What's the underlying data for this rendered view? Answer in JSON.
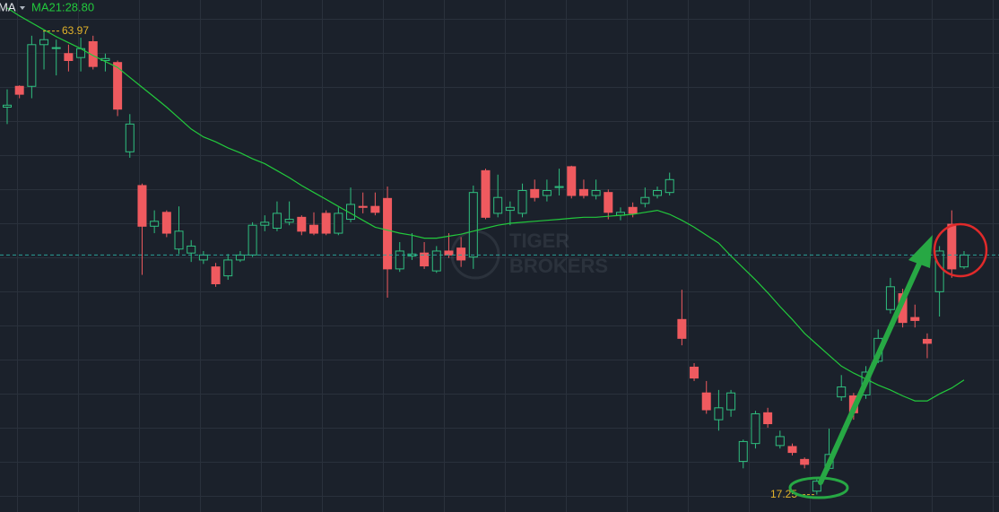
{
  "chart_data": {
    "type": "candlestick",
    "indicator": "MA",
    "ylim": [
      15.5,
      67.1
    ],
    "up_color": "#2fbf7f",
    "down_color": "#ef5a5f",
    "label_color": "#e3b32a",
    "last_price_line": true,
    "watermark": [
      "TIGER",
      "BROKERS"
    ],
    "high_label": 63.97,
    "low_label": 17.25,
    "ohlc": {
      "open": [
        56.3,
        58.4,
        58.4,
        62.6,
        62.3,
        61.7,
        61.3,
        62.9,
        61.0,
        60.8,
        51.8,
        48.4,
        44.3,
        45.7,
        42.0,
        41.6,
        40.9,
        40.2,
        39.3,
        40.9,
        41.4,
        44.4,
        44.1,
        44.7,
        45.2,
        44.4,
        45.6,
        43.6,
        45.0,
        46.3,
        46.3,
        47.1,
        40.0,
        41.3,
        41.6,
        39.8,
        41.8,
        42.1,
        41.2,
        49.9,
        45.6,
        45.9,
        45.6,
        48.0,
        47.4,
        48.2,
        50.3,
        48.0,
        47.4,
        47.7,
        45.4,
        46.2,
        46.6,
        47.4,
        47.7,
        34.9,
        30.1,
        27.5,
        24.8,
        25.8,
        20.6,
        22.4,
        25.5,
        22.2,
        22.1,
        20.8,
        17.6,
        19.9,
        27.1,
        27.2,
        27.3,
        30.7,
        35.9,
        37.5,
        35.1,
        32.9,
        37.7,
        44.5,
        40.2
      ],
      "high": [
        58.1,
        58.5,
        63.5,
        63.97,
        63.1,
        62.6,
        63.3,
        63.5,
        61.7,
        61.0,
        55.6,
        48.6,
        45.9,
        45.9,
        46.3,
        42.9,
        41.8,
        40.6,
        41.5,
        41.8,
        44.7,
        45.4,
        46.8,
        46.8,
        45.4,
        45.7,
        45.9,
        46.2,
        48.2,
        47.7,
        47.7,
        48.3,
        42.7,
        43.6,
        42.7,
        42.3,
        43.6,
        43.2,
        48.4,
        50.1,
        49.5,
        46.8,
        48.6,
        49.0,
        49.0,
        50.1,
        50.4,
        49.0,
        49.0,
        48.0,
        46.2,
        46.7,
        48.2,
        48.3,
        49.7,
        37.9,
        30.5,
        28.7,
        27.8,
        27.8,
        22.8,
        25.7,
        26.0,
        23.7,
        22.4,
        21.0,
        19.0,
        23.9,
        29.3,
        27.5,
        30.2,
        33.9,
        39.1,
        38.0,
        36.4,
        33.5,
        42.3,
        45.9,
        41.8
      ],
      "low": [
        54.6,
        57.2,
        57.2,
        60.1,
        59.5,
        59.9,
        59.9,
        60.1,
        59.9,
        55.4,
        51.2,
        39.4,
        43.6,
        43.2,
        41.5,
        40.7,
        40.5,
        38.2,
        38.9,
        40.7,
        41.2,
        43.8,
        43.8,
        44.4,
        43.4,
        43.4,
        43.4,
        43.4,
        44.7,
        45.6,
        45.4,
        37.1,
        39.7,
        40.9,
        40.0,
        39.6,
        41.1,
        40.2,
        40.0,
        45.0,
        45.2,
        44.4,
        45.2,
        46.8,
        46.8,
        47.4,
        47.1,
        47.1,
        47.0,
        45.0,
        44.9,
        45.2,
        46.2,
        47.1,
        47.4,
        32.3,
        28.7,
        25.4,
        23.7,
        25.1,
        19.9,
        21.9,
        24.0,
        21.9,
        21.2,
        19.9,
        17.25,
        19.7,
        26.7,
        24.8,
        26.9,
        30.5,
        35.5,
        34.1,
        34.1,
        31.0,
        35.2,
        39.1,
        40.0
      ],
      "close": [
        56.5,
        57.6,
        62.6,
        63.1,
        62.3,
        61.0,
        62.2,
        60.4,
        61.2,
        56.1,
        54.6,
        44.3,
        44.8,
        43.6,
        43.8,
        42.3,
        41.4,
        38.5,
        40.9,
        41.4,
        44.4,
        44.7,
        45.6,
        45.0,
        43.8,
        43.6,
        43.6,
        45.6,
        46.5,
        46.2,
        45.7,
        40.0,
        41.8,
        41.5,
        40.3,
        41.8,
        41.4,
        40.9,
        47.7,
        45.2,
        47.2,
        46.2,
        47.9,
        47.2,
        47.9,
        48.3,
        47.4,
        47.4,
        47.9,
        45.7,
        45.7,
        45.6,
        47.2,
        47.9,
        49.0,
        33.0,
        29.0,
        25.8,
        26.0,
        27.5,
        22.6,
        25.4,
        24.4,
        23.1,
        21.5,
        20.3,
        18.6,
        21.3,
        28.1,
        25.5,
        29.6,
        33.0,
        38.2,
        34.6,
        34.8,
        32.5,
        41.8,
        40.0,
        41.4
      ]
    },
    "ma": {
      "name": "MA21:28.80",
      "color": "#22c93c",
      "values": [
        66.3,
        65.5,
        64.8,
        64.1,
        63.4,
        62.8,
        62.2,
        61.5,
        60.9,
        60.3,
        59.3,
        58.3,
        57.3,
        56.3,
        55.2,
        54.1,
        53.3,
        52.8,
        52.2,
        51.7,
        51.1,
        50.6,
        49.9,
        49.2,
        48.4,
        47.7,
        47.0,
        46.3,
        45.6,
        44.9,
        44.2,
        43.9,
        43.6,
        43.4,
        43.1,
        43.1,
        43.3,
        43.5,
        43.8,
        44.1,
        44.4,
        44.6,
        44.7,
        44.8,
        44.9,
        45.0,
        45.1,
        45.2,
        45.2,
        45.3,
        45.4,
        45.5,
        45.7,
        45.9,
        45.5,
        44.9,
        44.2,
        43.4,
        42.6,
        41.3,
        40.1,
        38.9,
        37.6,
        36.2,
        34.9,
        33.5,
        32.4,
        31.3,
        30.2,
        29.5,
        28.9,
        28.3,
        27.8,
        27.2,
        26.7,
        26.7,
        27.4,
        28.0,
        28.8
      ]
    }
  }
}
